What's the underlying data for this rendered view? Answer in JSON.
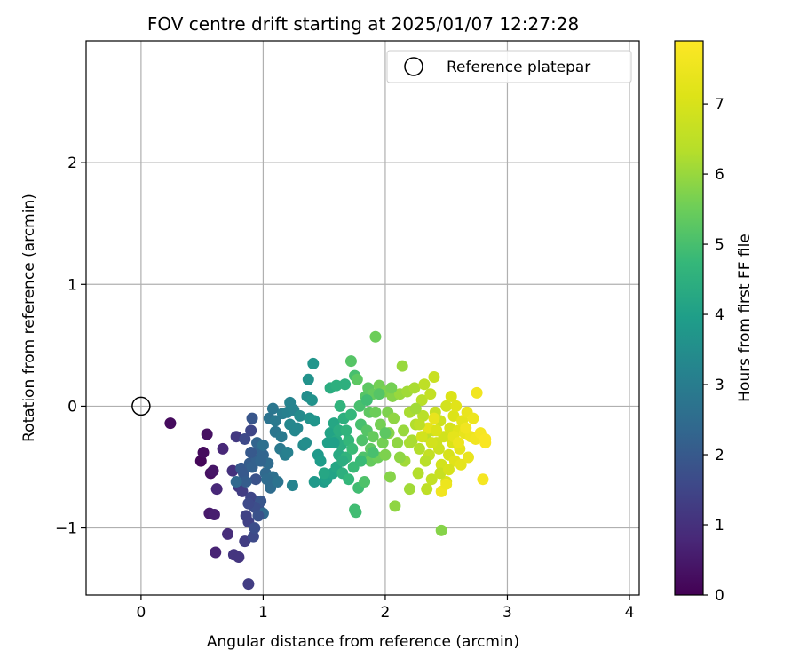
{
  "chart_data": {
    "type": "scatter",
    "title": "FOV centre drift starting at 2025/01/07 12:27:28",
    "xlabel": "Angular distance from reference (arcmin)",
    "ylabel": "Rotation from reference (arcmin)",
    "xlim": [
      -0.45,
      4.08
    ],
    "ylim": [
      -1.55,
      3.0
    ],
    "xticks": [
      "0",
      "1",
      "2",
      "3",
      "4"
    ],
    "yticks": [
      "−1",
      "0",
      "1",
      "2"
    ],
    "grid": true,
    "legend": {
      "placement": "top-right",
      "entries": [
        "Reference platepar"
      ]
    },
    "reference_point": {
      "x": 0,
      "y": 0,
      "name": "Reference platepar"
    },
    "colorbar": {
      "label": "Hours from first FF file",
      "range": [
        0,
        7.9
      ],
      "ticks": [
        "0",
        "1",
        "2",
        "3",
        "4",
        "5",
        "6",
        "7"
      ],
      "colormap": "viridis"
    },
    "points": [
      {
        "x": 0.24,
        "y": -0.14,
        "c": 0.2
      },
      {
        "x": 0.49,
        "y": -0.45,
        "c": 0.1
      },
      {
        "x": 0.51,
        "y": -0.38,
        "c": 0.2
      },
      {
        "x": 0.54,
        "y": -0.23,
        "c": 0.3
      },
      {
        "x": 0.57,
        "y": -0.55,
        "c": 0.3
      },
      {
        "x": 0.59,
        "y": -0.53,
        "c": 0.4
      },
      {
        "x": 0.56,
        "y": -0.88,
        "c": 0.5
      },
      {
        "x": 0.6,
        "y": -0.89,
        "c": 0.6
      },
      {
        "x": 0.61,
        "y": -1.2,
        "c": 0.7
      },
      {
        "x": 0.62,
        "y": -0.68,
        "c": 0.8
      },
      {
        "x": 0.67,
        "y": -0.35,
        "c": 0.8
      },
      {
        "x": 0.71,
        "y": -1.05,
        "c": 0.9
      },
      {
        "x": 0.75,
        "y": -0.53,
        "c": 1.0
      },
      {
        "x": 0.76,
        "y": -1.22,
        "c": 1.1
      },
      {
        "x": 0.8,
        "y": -1.24,
        "c": 1.1
      },
      {
        "x": 0.78,
        "y": -0.25,
        "c": 1.2
      },
      {
        "x": 0.8,
        "y": -0.66,
        "c": 1.2
      },
      {
        "x": 0.83,
        "y": -0.7,
        "c": 1.3
      },
      {
        "x": 0.85,
        "y": -1.11,
        "c": 1.3
      },
      {
        "x": 0.88,
        "y": -1.46,
        "c": 1.3
      },
      {
        "x": 0.86,
        "y": -0.9,
        "c": 1.4
      },
      {
        "x": 0.88,
        "y": -0.95,
        "c": 1.4
      },
      {
        "x": 0.9,
        "y": -0.75,
        "c": 1.5
      },
      {
        "x": 0.9,
        "y": -0.2,
        "c": 1.5
      },
      {
        "x": 0.85,
        "y": -0.27,
        "c": 1.6
      },
      {
        "x": 0.92,
        "y": -1.07,
        "c": 1.6
      },
      {
        "x": 0.93,
        "y": -1.0,
        "c": 1.7
      },
      {
        "x": 0.94,
        "y": -0.6,
        "c": 1.8
      },
      {
        "x": 0.96,
        "y": -0.84,
        "c": 1.8
      },
      {
        "x": 0.98,
        "y": -0.78,
        "c": 1.9
      },
      {
        "x": 0.91,
        "y": -0.1,
        "c": 1.9
      },
      {
        "x": 0.82,
        "y": -0.51,
        "c": 2.0
      },
      {
        "x": 0.84,
        "y": -0.55,
        "c": 2.0
      },
      {
        "x": 0.86,
        "y": -0.62,
        "c": 2.1
      },
      {
        "x": 0.89,
        "y": -0.47,
        "c": 2.1
      },
      {
        "x": 0.91,
        "y": -0.5,
        "c": 2.2
      },
      {
        "x": 0.95,
        "y": -0.44,
        "c": 2.2
      },
      {
        "x": 0.97,
        "y": -0.35,
        "c": 2.3
      },
      {
        "x": 1.0,
        "y": -0.4,
        "c": 2.3
      },
      {
        "x": 1.0,
        "y": -0.88,
        "c": 2.4
      },
      {
        "x": 1.02,
        "y": -0.55,
        "c": 2.4
      },
      {
        "x": 1.04,
        "y": -0.47,
        "c": 2.5
      },
      {
        "x": 1.06,
        "y": -0.67,
        "c": 2.5
      },
      {
        "x": 1.08,
        "y": -0.58,
        "c": 2.6
      },
      {
        "x": 0.78,
        "y": -0.62,
        "c": 2.4
      },
      {
        "x": 0.95,
        "y": -0.3,
        "c": 2.3
      },
      {
        "x": 1.05,
        "y": -0.1,
        "c": 2.7
      },
      {
        "x": 1.08,
        "y": -0.02,
        "c": 2.8
      },
      {
        "x": 1.1,
        "y": -0.21,
        "c": 2.8
      },
      {
        "x": 1.12,
        "y": -0.62,
        "c": 2.7
      },
      {
        "x": 1.14,
        "y": -0.35,
        "c": 2.9
      },
      {
        "x": 1.16,
        "y": -0.06,
        "c": 3.0
      },
      {
        "x": 1.18,
        "y": -0.4,
        "c": 3.0
      },
      {
        "x": 1.2,
        "y": -0.38,
        "c": 3.1
      },
      {
        "x": 1.2,
        "y": -0.05,
        "c": 3.1
      },
      {
        "x": 1.22,
        "y": 0.03,
        "c": 3.2
      },
      {
        "x": 1.25,
        "y": -0.03,
        "c": 3.2
      },
      {
        "x": 1.22,
        "y": -0.15,
        "c": 3.3
      },
      {
        "x": 1.26,
        "y": -0.2,
        "c": 3.3
      },
      {
        "x": 1.28,
        "y": -0.18,
        "c": 3.3
      },
      {
        "x": 1.24,
        "y": -0.65,
        "c": 3.2
      },
      {
        "x": 1.3,
        "y": -0.08,
        "c": 3.4
      },
      {
        "x": 1.33,
        "y": -0.32,
        "c": 3.4
      },
      {
        "x": 1.35,
        "y": -0.3,
        "c": 3.5
      },
      {
        "x": 1.36,
        "y": 0.08,
        "c": 3.5
      },
      {
        "x": 1.37,
        "y": 0.22,
        "c": 3.6
      },
      {
        "x": 1.38,
        "y": -0.1,
        "c": 3.6
      },
      {
        "x": 1.4,
        "y": 0.05,
        "c": 3.6
      },
      {
        "x": 1.41,
        "y": 0.35,
        "c": 3.7
      },
      {
        "x": 1.42,
        "y": -0.12,
        "c": 3.7
      },
      {
        "x": 1.42,
        "y": -0.62,
        "c": 3.8
      },
      {
        "x": 1.45,
        "y": -0.4,
        "c": 3.8
      },
      {
        "x": 1.47,
        "y": -0.45,
        "c": 3.9
      },
      {
        "x": 1.5,
        "y": -0.62,
        "c": 3.9
      },
      {
        "x": 1.52,
        "y": -0.6,
        "c": 4.0
      },
      {
        "x": 1.53,
        "y": -0.3,
        "c": 4.0
      },
      {
        "x": 1.55,
        "y": -0.22,
        "c": 4.1
      },
      {
        "x": 1.57,
        "y": -0.55,
        "c": 4.1
      },
      {
        "x": 1.58,
        "y": -0.14,
        "c": 4.2
      },
      {
        "x": 1.6,
        "y": -0.5,
        "c": 4.2
      },
      {
        "x": 1.6,
        "y": -0.28,
        "c": 4.3
      },
      {
        "x": 1.62,
        "y": -0.4,
        "c": 4.3
      },
      {
        "x": 1.62,
        "y": -0.2,
        "c": 4.4
      },
      {
        "x": 1.64,
        "y": -0.32,
        "c": 4.4
      },
      {
        "x": 1.65,
        "y": -0.55,
        "c": 4.5
      },
      {
        "x": 1.66,
        "y": -0.1,
        "c": 4.5
      },
      {
        "x": 1.67,
        "y": 0.18,
        "c": 4.5
      },
      {
        "x": 1.63,
        "y": 0.0,
        "c": 4.6
      },
      {
        "x": 1.68,
        "y": -0.42,
        "c": 4.6
      },
      {
        "x": 1.7,
        "y": -0.28,
        "c": 4.7
      },
      {
        "x": 1.7,
        "y": -0.6,
        "c": 4.7
      },
      {
        "x": 1.72,
        "y": -0.07,
        "c": 4.7
      },
      {
        "x": 1.73,
        "y": -0.35,
        "c": 4.8
      },
      {
        "x": 1.74,
        "y": -0.5,
        "c": 4.8
      },
      {
        "x": 1.75,
        "y": -0.85,
        "c": 4.9
      },
      {
        "x": 1.76,
        "y": -0.87,
        "c": 4.9
      },
      {
        "x": 1.75,
        "y": 0.25,
        "c": 5.0
      },
      {
        "x": 1.78,
        "y": -0.67,
        "c": 4.9
      },
      {
        "x": 1.79,
        "y": 0.0,
        "c": 5.0
      },
      {
        "x": 1.8,
        "y": -0.15,
        "c": 5.0
      },
      {
        "x": 1.81,
        "y": -0.28,
        "c": 5.1
      },
      {
        "x": 1.82,
        "y": -0.42,
        "c": 5.1
      },
      {
        "x": 1.83,
        "y": -0.62,
        "c": 5.1
      },
      {
        "x": 1.84,
        "y": 0.08,
        "c": 5.2
      },
      {
        "x": 1.85,
        "y": -0.2,
        "c": 5.2
      },
      {
        "x": 1.86,
        "y": 0.15,
        "c": 5.3
      },
      {
        "x": 1.87,
        "y": -0.05,
        "c": 5.3
      },
      {
        "x": 1.88,
        "y": -0.35,
        "c": 5.3
      },
      {
        "x": 1.88,
        "y": -0.45,
        "c": 5.4
      },
      {
        "x": 1.9,
        "y": 0.1,
        "c": 5.4
      },
      {
        "x": 1.9,
        "y": -0.25,
        "c": 5.4
      },
      {
        "x": 1.92,
        "y": 0.57,
        "c": 5.5
      },
      {
        "x": 1.92,
        "y": -0.05,
        "c": 5.5
      },
      {
        "x": 1.94,
        "y": -0.42,
        "c": 5.5
      },
      {
        "x": 1.95,
        "y": 0.17,
        "c": 5.6
      },
      {
        "x": 1.96,
        "y": -0.15,
        "c": 5.6
      },
      {
        "x": 1.98,
        "y": -0.3,
        "c": 5.6
      },
      {
        "x": 2.0,
        "y": 0.12,
        "c": 5.7
      },
      {
        "x": 2.0,
        "y": -0.4,
        "c": 5.7
      },
      {
        "x": 2.02,
        "y": -0.05,
        "c": 5.7
      },
      {
        "x": 2.03,
        "y": -0.22,
        "c": 5.8
      },
      {
        "x": 2.04,
        "y": -0.58,
        "c": 5.8
      },
      {
        "x": 2.06,
        "y": 0.08,
        "c": 5.8
      },
      {
        "x": 2.07,
        "y": -0.1,
        "c": 5.9
      },
      {
        "x": 2.08,
        "y": -0.82,
        "c": 5.9
      },
      {
        "x": 2.1,
        "y": -0.3,
        "c": 5.9
      },
      {
        "x": 2.12,
        "y": 0.1,
        "c": 6.0
      },
      {
        "x": 2.14,
        "y": 0.33,
        "c": 6.0
      },
      {
        "x": 2.15,
        "y": -0.2,
        "c": 6.0
      },
      {
        "x": 2.16,
        "y": -0.45,
        "c": 6.1
      },
      {
        "x": 2.18,
        "y": 0.12,
        "c": 6.1
      },
      {
        "x": 2.2,
        "y": -0.68,
        "c": 6.1
      },
      {
        "x": 2.2,
        "y": -0.05,
        "c": 6.2
      },
      {
        "x": 2.22,
        "y": -0.28,
        "c": 6.2
      },
      {
        "x": 2.24,
        "y": 0.15,
        "c": 6.2
      },
      {
        "x": 2.25,
        "y": -0.15,
        "c": 6.3
      },
      {
        "x": 2.27,
        "y": -0.55,
        "c": 6.3
      },
      {
        "x": 2.28,
        "y": -0.35,
        "c": 6.3
      },
      {
        "x": 2.3,
        "y": 0.05,
        "c": 6.4
      },
      {
        "x": 2.31,
        "y": -0.08,
        "c": 6.4
      },
      {
        "x": 2.32,
        "y": 0.18,
        "c": 6.5
      },
      {
        "x": 2.33,
        "y": -0.25,
        "c": 6.5
      },
      {
        "x": 2.34,
        "y": -0.68,
        "c": 6.5
      },
      {
        "x": 2.36,
        "y": -0.4,
        "c": 6.6
      },
      {
        "x": 2.37,
        "y": 0.1,
        "c": 6.6
      },
      {
        "x": 2.38,
        "y": -0.6,
        "c": 6.6
      },
      {
        "x": 2.39,
        "y": -0.2,
        "c": 6.7
      },
      {
        "x": 2.4,
        "y": 0.24,
        "c": 6.7
      },
      {
        "x": 2.41,
        "y": -0.05,
        "c": 6.7
      },
      {
        "x": 2.42,
        "y": -0.3,
        "c": 6.8
      },
      {
        "x": 2.44,
        "y": -0.35,
        "c": 6.8
      },
      {
        "x": 2.45,
        "y": -0.12,
        "c": 6.8
      },
      {
        "x": 2.46,
        "y": -1.02,
        "c": 5.8
      },
      {
        "x": 2.46,
        "y": -0.48,
        "c": 6.9
      },
      {
        "x": 2.48,
        "y": -0.25,
        "c": 6.9
      },
      {
        "x": 2.5,
        "y": 0.0,
        "c": 6.9
      },
      {
        "x": 2.5,
        "y": -0.62,
        "c": 7.0
      },
      {
        "x": 2.52,
        "y": -0.4,
        "c": 7.0
      },
      {
        "x": 2.53,
        "y": -0.18,
        "c": 7.0
      },
      {
        "x": 2.54,
        "y": 0.08,
        "c": 7.1
      },
      {
        "x": 2.55,
        "y": -0.3,
        "c": 7.1
      },
      {
        "x": 2.56,
        "y": -0.08,
        "c": 7.1
      },
      {
        "x": 2.57,
        "y": -0.45,
        "c": 7.2
      },
      {
        "x": 2.58,
        "y": 0.0,
        "c": 7.2
      },
      {
        "x": 2.6,
        "y": -0.2,
        "c": 7.2
      },
      {
        "x": 2.61,
        "y": -0.35,
        "c": 7.3
      },
      {
        "x": 2.62,
        "y": -0.48,
        "c": 7.3
      },
      {
        "x": 2.63,
        "y": -0.12,
        "c": 7.3
      },
      {
        "x": 2.65,
        "y": -0.22,
        "c": 7.4
      },
      {
        "x": 2.67,
        "y": -0.05,
        "c": 7.4
      },
      {
        "x": 2.68,
        "y": -0.42,
        "c": 7.4
      },
      {
        "x": 2.7,
        "y": -0.25,
        "c": 7.5
      },
      {
        "x": 2.72,
        "y": -0.1,
        "c": 7.5
      },
      {
        "x": 2.74,
        "y": -0.27,
        "c": 7.6
      },
      {
        "x": 2.75,
        "y": 0.11,
        "c": 7.6
      },
      {
        "x": 2.78,
        "y": -0.22,
        "c": 7.7
      },
      {
        "x": 2.8,
        "y": -0.6,
        "c": 7.7
      },
      {
        "x": 2.82,
        "y": -0.3,
        "c": 7.8
      },
      {
        "x": 2.82,
        "y": -0.27,
        "c": 7.8
      },
      {
        "x": 2.46,
        "y": -0.7,
        "c": 7.6
      },
      {
        "x": 2.5,
        "y": -0.64,
        "c": 7.5
      },
      {
        "x": 2.4,
        "y": -0.1,
        "c": 7.4
      },
      {
        "x": 2.35,
        "y": -0.18,
        "c": 7.3
      },
      {
        "x": 2.3,
        "y": -0.25,
        "c": 6.9
      },
      {
        "x": 2.33,
        "y": -0.45,
        "c": 6.4
      },
      {
        "x": 2.25,
        "y": -0.02,
        "c": 6.1
      },
      {
        "x": 2.05,
        "y": 0.15,
        "c": 5.6
      },
      {
        "x": 1.95,
        "y": 0.1,
        "c": 5.2
      },
      {
        "x": 1.85,
        "y": 0.05,
        "c": 4.9
      },
      {
        "x": 1.72,
        "y": 0.37,
        "c": 5.2
      },
      {
        "x": 1.77,
        "y": 0.22,
        "c": 5.3
      },
      {
        "x": 1.55,
        "y": 0.15,
        "c": 4.4
      },
      {
        "x": 1.6,
        "y": 0.17,
        "c": 4.5
      },
      {
        "x": 1.5,
        "y": -0.55,
        "c": 4.2
      },
      {
        "x": 1.58,
        "y": -0.3,
        "c": 4.0
      },
      {
        "x": 1.68,
        "y": -0.2,
        "c": 4.6
      },
      {
        "x": 1.65,
        "y": -0.45,
        "c": 4.4
      },
      {
        "x": 1.8,
        "y": -0.45,
        "c": 4.8
      },
      {
        "x": 1.9,
        "y": -0.38,
        "c": 5.0
      },
      {
        "x": 2.0,
        "y": -0.22,
        "c": 5.3
      },
      {
        "x": 2.12,
        "y": -0.42,
        "c": 5.9
      },
      {
        "x": 2.2,
        "y": -0.3,
        "c": 6.2
      },
      {
        "x": 2.28,
        "y": -0.15,
        "c": 6.5
      },
      {
        "x": 2.38,
        "y": -0.3,
        "c": 6.9
      },
      {
        "x": 2.42,
        "y": -0.2,
        "c": 7.1
      },
      {
        "x": 2.56,
        "y": -0.25,
        "c": 7.3
      },
      {
        "x": 2.6,
        "y": -0.3,
        "c": 7.5
      },
      {
        "x": 2.66,
        "y": -0.18,
        "c": 7.6
      },
      {
        "x": 2.45,
        "y": -0.55,
        "c": 6.7
      },
      {
        "x": 2.52,
        "y": -0.52,
        "c": 7.0
      },
      {
        "x": 1.1,
        "y": -0.12,
        "c": 2.9
      },
      {
        "x": 1.15,
        "y": -0.25,
        "c": 2.9
      },
      {
        "x": 1.0,
        "y": -0.32,
        "c": 2.6
      },
      {
        "x": 1.03,
        "y": -0.6,
        "c": 2.5
      },
      {
        "x": 0.9,
        "y": -0.38,
        "c": 2.0
      },
      {
        "x": 0.98,
        "y": -0.45,
        "c": 2.3
      },
      {
        "x": 0.93,
        "y": -0.83,
        "c": 1.7
      },
      {
        "x": 0.96,
        "y": -0.9,
        "c": 1.8
      },
      {
        "x": 0.88,
        "y": -0.8,
        "c": 1.6
      }
    ]
  }
}
